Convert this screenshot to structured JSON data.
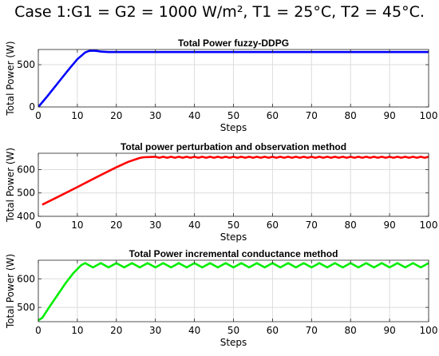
{
  "figure_title": "Case 1:G1 = G2 = 1000 W/m², T1 = 25°C, T2 = 45°C.",
  "chart_data": [
    {
      "type": "line",
      "title": "Total Power fuzzy-DDPG",
      "xlabel": "Steps",
      "ylabel": "Total Power (W)",
      "xlim": [
        0,
        100
      ],
      "ylim": [
        0,
        680
      ],
      "xticks": [
        0,
        10,
        20,
        30,
        40,
        50,
        60,
        70,
        80,
        90,
        100
      ],
      "yticks": [
        0,
        500
      ],
      "grid": true,
      "series": [
        {
          "color": "#0000ff",
          "x": [
            0,
            2,
            4,
            6,
            8,
            10,
            12,
            13,
            14,
            15,
            16,
            18,
            20,
            25,
            30,
            40,
            50,
            60,
            70,
            80,
            90,
            100
          ],
          "y": [
            0,
            110,
            225,
            340,
            455,
            565,
            645,
            663,
            667,
            663,
            655,
            650,
            650,
            650,
            650,
            650,
            650,
            650,
            650,
            650,
            650,
            650
          ]
        }
      ]
    },
    {
      "type": "line",
      "title": "Total power perturbation and observation method",
      "xlabel": "Steps",
      "ylabel": "Total Power (W)",
      "xlim": [
        0,
        100
      ],
      "ylim": [
        400,
        670
      ],
      "xticks": [
        0,
        10,
        20,
        30,
        40,
        50,
        60,
        70,
        80,
        90,
        100
      ],
      "yticks": [
        400,
        500,
        600
      ],
      "grid": true,
      "series": [
        {
          "color": "#ff0000",
          "oscillation_amplitude": 2,
          "x": [
            1,
            5,
            10,
            15,
            20,
            23,
            26,
            27,
            30,
            40,
            50,
            60,
            70,
            80,
            90,
            100
          ],
          "y": [
            450,
            483,
            525,
            568,
            610,
            633,
            650,
            653,
            653,
            653,
            653,
            653,
            653,
            653,
            653,
            653
          ]
        }
      ]
    },
    {
      "type": "line",
      "title": "Total Power incremental conductance method",
      "xlabel": "Steps",
      "ylabel": "Total Power (W)",
      "xlim": [
        0,
        100
      ],
      "ylim": [
        450,
        665
      ],
      "xticks": [
        0,
        10,
        20,
        30,
        40,
        50,
        60,
        70,
        80,
        90,
        100
      ],
      "yticks": [
        500,
        600
      ],
      "grid": true,
      "series": [
        {
          "color": "#00ee00",
          "x": [
            0,
            1,
            3,
            5,
            7,
            9,
            11,
            12,
            14,
            16,
            18,
            20,
            22,
            24,
            26,
            28,
            30,
            32,
            34,
            36,
            38,
            40,
            42,
            44,
            46,
            48,
            50,
            52,
            54,
            56,
            58,
            60,
            62,
            64,
            66,
            68,
            70,
            72,
            74,
            76,
            78,
            80,
            82,
            84,
            86,
            88,
            90,
            92,
            94,
            96,
            98,
            100
          ],
          "y": [
            455,
            463,
            505,
            545,
            585,
            620,
            648,
            655,
            640,
            655,
            640,
            655,
            640,
            655,
            640,
            655,
            640,
            655,
            640,
            655,
            640,
            655,
            640,
            655,
            640,
            655,
            640,
            655,
            640,
            655,
            640,
            655,
            640,
            655,
            640,
            655,
            640,
            655,
            640,
            655,
            640,
            655,
            640,
            655,
            640,
            655,
            640,
            655,
            640,
            655,
            640,
            655
          ]
        }
      ]
    }
  ]
}
